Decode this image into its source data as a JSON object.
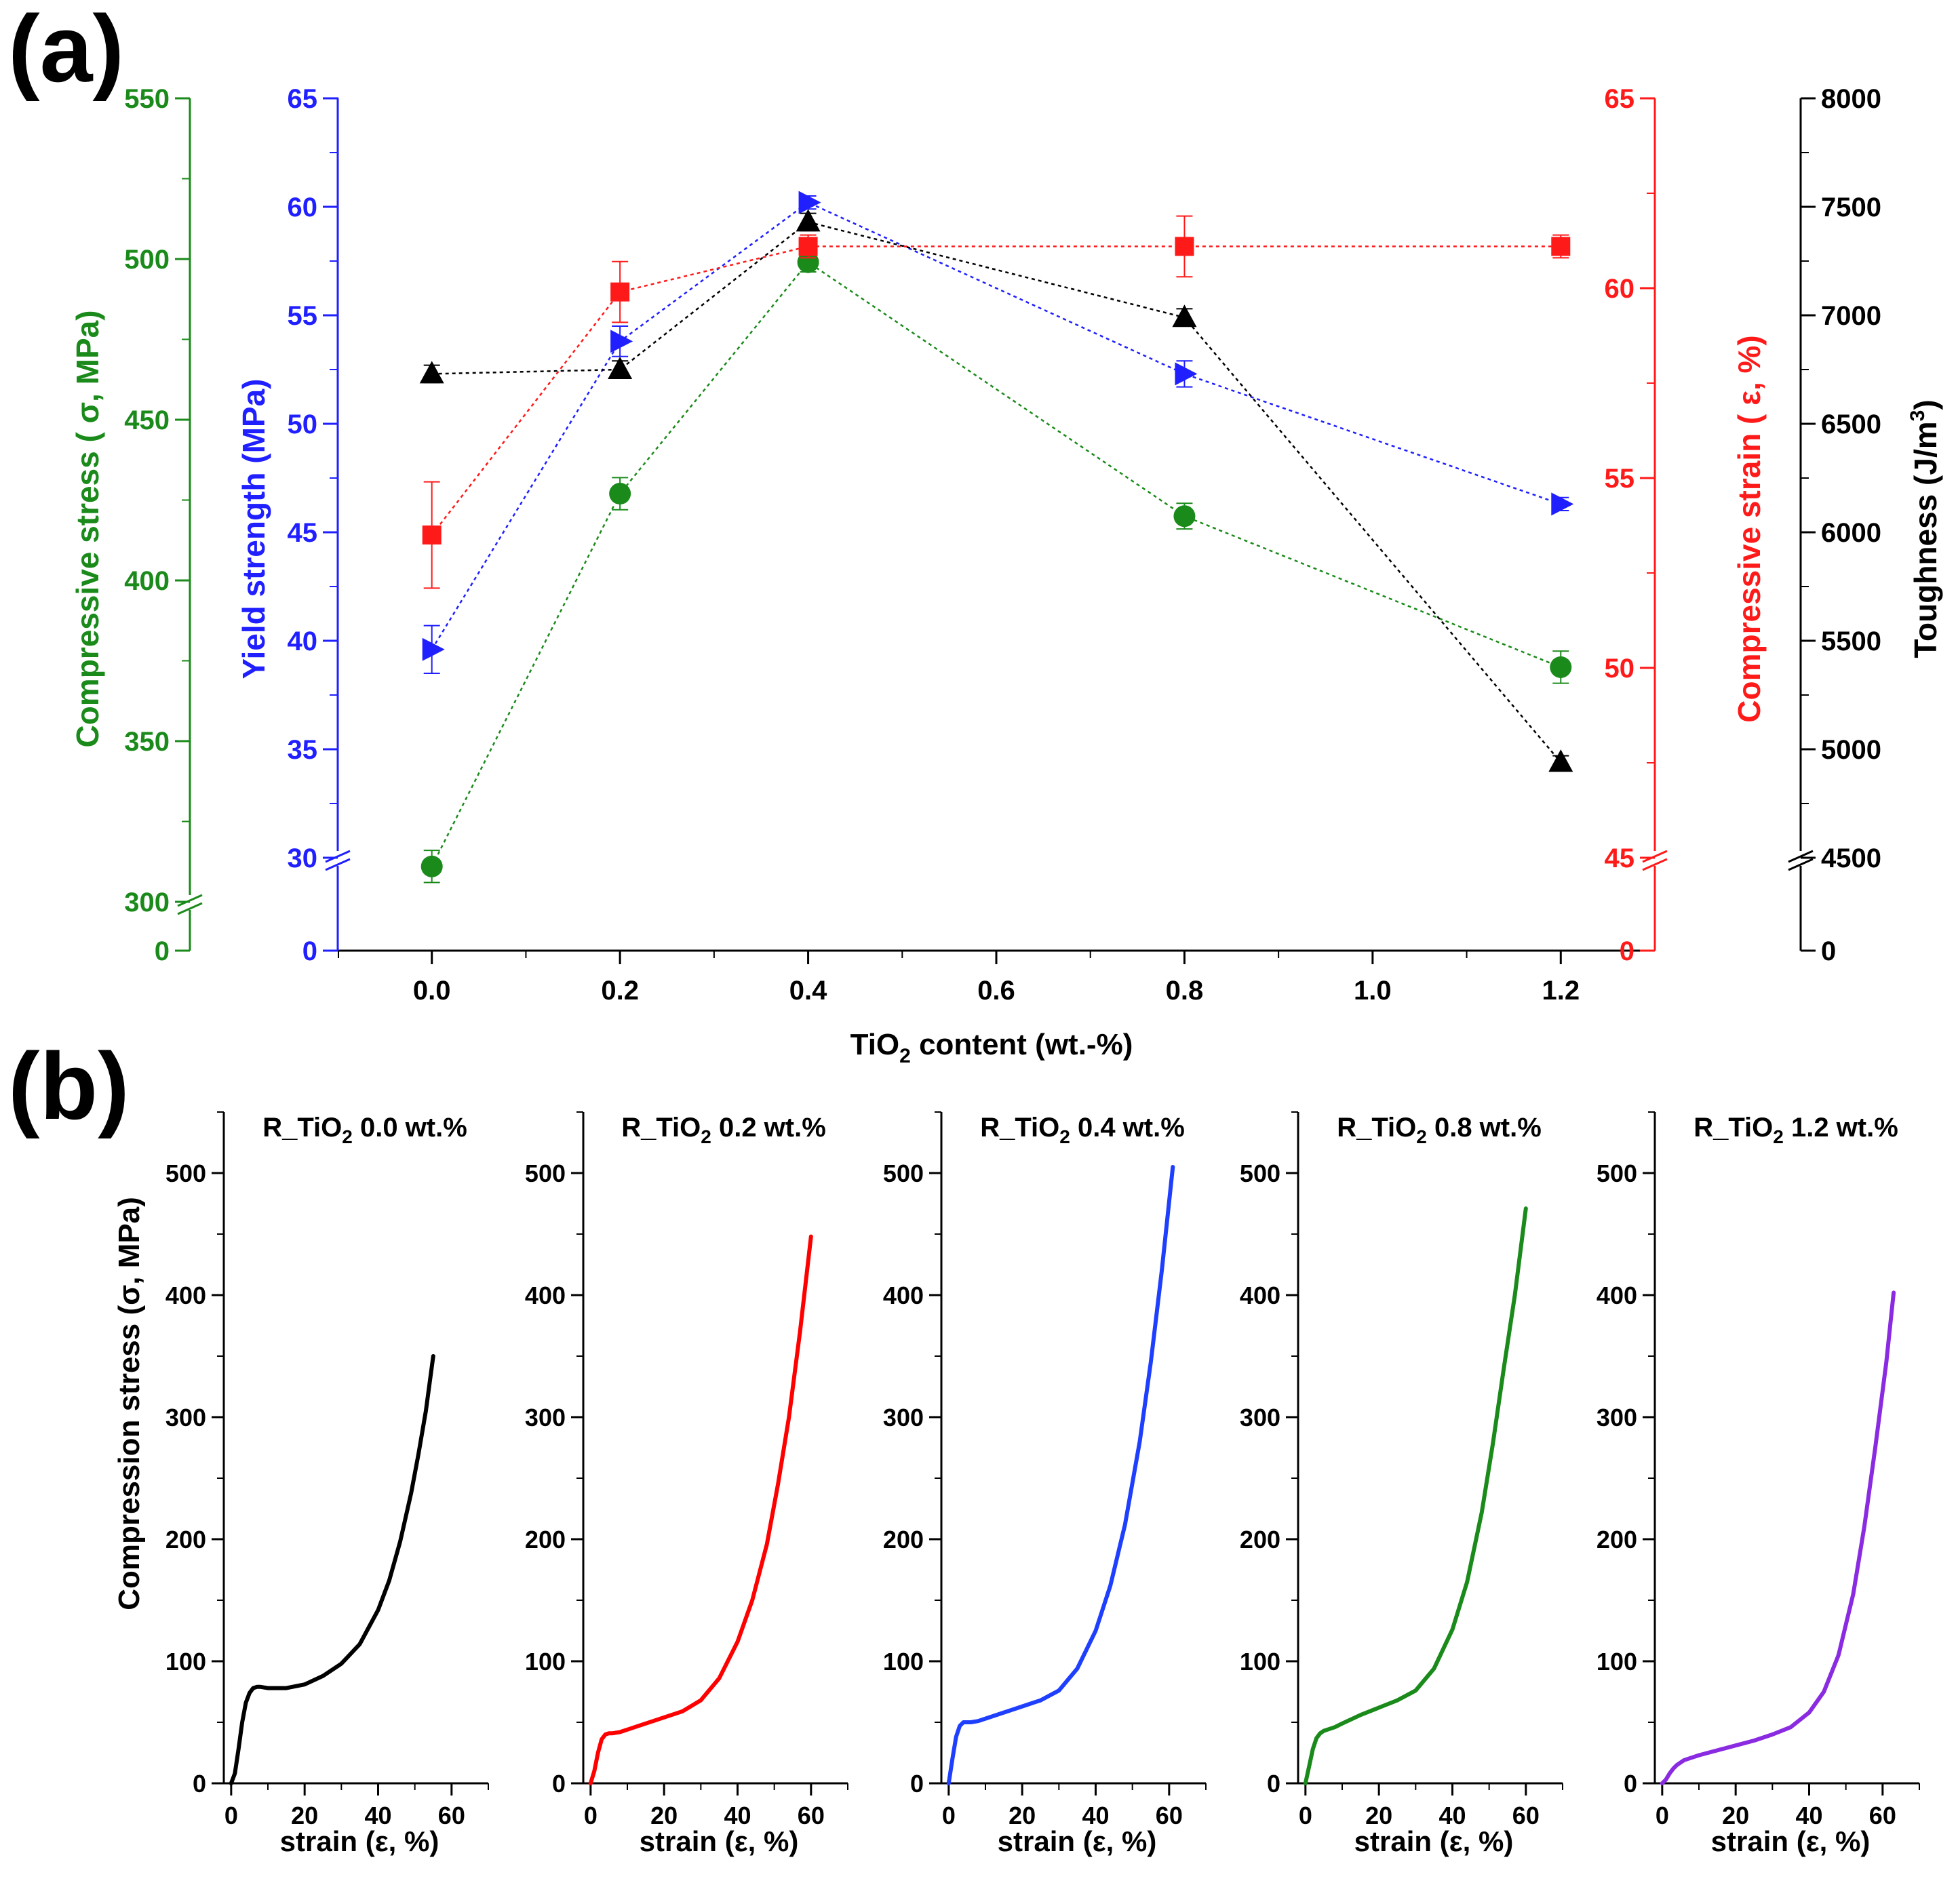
{
  "panel_a": {
    "panel_label": "(a)",
    "xlabel_main": "TiO",
    "xlabel_sub": "2",
    "xlabel_rest": " content (wt.-%)",
    "x_ticks": [
      "0.0",
      "0.2",
      "0.4",
      "0.6",
      "0.8",
      "1.0",
      "1.2"
    ],
    "axis_green": {
      "label": "Compressive stress ( σ, MPa)",
      "color": "#1a8a1a",
      "ticks": [
        "550",
        "500",
        "450",
        "400",
        "350",
        "300",
        "0"
      ]
    },
    "axis_blue": {
      "label": "Yield strength (MPa)",
      "color": "#1f1fff",
      "ticks": [
        "65",
        "60",
        "55",
        "50",
        "45",
        "40",
        "35",
        "30",
        "0"
      ]
    },
    "axis_red": {
      "label": "Compressive strain ( ε, %)",
      "color": "#ff1a1a",
      "ticks": [
        "65",
        "60",
        "55",
        "50",
        "45",
        "0"
      ]
    },
    "axis_black": {
      "label": "Toughness (J/m",
      "label_sup": "3",
      "label_end": ")",
      "color": "#000000",
      "ticks": [
        "8000",
        "7500",
        "7000",
        "6500",
        "6000",
        "5500",
        "5000",
        "4500",
        "0"
      ]
    }
  },
  "panel_b": {
    "panel_label": "(b)",
    "ylabel": "Compression stress (σ, MPa)",
    "xlabel": "strain (ε, %)",
    "y_ticks": [
      "0",
      "100",
      "200",
      "300",
      "400",
      "500"
    ],
    "x_ticks": [
      "0",
      "20",
      "40",
      "60"
    ],
    "titles": [
      {
        "pre": "R_TiO",
        "sub": "2",
        "post": " 0.0 wt.%"
      },
      {
        "pre": "R_TiO",
        "sub": "2",
        "post": " 0.2 wt.%"
      },
      {
        "pre": "R_TiO",
        "sub": "2",
        "post": " 0.4 wt.%"
      },
      {
        "pre": "R_TiO",
        "sub": "2",
        "post": " 0.8 wt.%"
      },
      {
        "pre": "R_TiO",
        "sub": "2",
        "post": " 1.2 wt.%"
      }
    ]
  },
  "chart_data": [
    {
      "type": "scatter",
      "title": "",
      "xlabel": "TiO2 content (wt.-%)",
      "x": [
        0.0,
        0.2,
        0.4,
        0.8,
        1.2
      ],
      "xlim": [
        -0.1,
        1.3
      ],
      "series": [
        {
          "name": "Compressive stress (σ, MPa)",
          "axis": "green",
          "marker": "circle",
          "color": "#1a8a1a",
          "values": [
            311,
            427,
            499,
            420,
            373
          ],
          "errors": [
            5,
            5,
            3,
            4,
            5
          ],
          "ylim": [
            300,
            550
          ]
        },
        {
          "name": "Yield strength (MPa)",
          "axis": "blue",
          "marker": "triangle-right",
          "color": "#1f1fff",
          "values": [
            39.6,
            53.8,
            60.2,
            52.3,
            46.3
          ],
          "errors": [
            1.1,
            0.7,
            0.3,
            0.6,
            0.3
          ],
          "ylim": [
            30,
            65
          ]
        },
        {
          "name": "Compressive strain (ε, %)",
          "axis": "red",
          "marker": "square",
          "color": "#ff1a1a",
          "values": [
            53.5,
            59.9,
            61.1,
            61.1,
            61.1
          ],
          "errors": [
            1.4,
            0.8,
            0.3,
            0.8,
            0.3
          ],
          "ylim": [
            45,
            65
          ]
        },
        {
          "name": "Toughness (J/m3)",
          "axis": "black",
          "marker": "triangle-up",
          "color": "#000000",
          "values": [
            6730,
            6750,
            7430,
            6990,
            4940
          ],
          "errors": [
            40,
            40,
            40,
            40,
            30
          ],
          "ylim": [
            4500,
            8000
          ]
        }
      ]
    },
    {
      "type": "line",
      "title": "R_TiO2 0.0 wt.%",
      "xlabel": "strain (ε, %)",
      "ylabel": "Compression stress (σ, MPa)",
      "xlim": [
        -2,
        70
      ],
      "ylim": [
        0,
        550
      ],
      "color": "#000000",
      "x": [
        0,
        1,
        2,
        3,
        4,
        5,
        6,
        7,
        8,
        10,
        15,
        20,
        25,
        30,
        35,
        40,
        43,
        46,
        49,
        51,
        53,
        55
      ],
      "y": [
        0,
        8,
        28,
        50,
        66,
        74,
        78,
        79,
        79,
        78,
        78,
        81,
        88,
        98,
        114,
        142,
        166,
        198,
        238,
        270,
        305,
        350
      ]
    },
    {
      "type": "line",
      "title": "R_TiO2 0.2 wt.%",
      "xlabel": "strain (ε, %)",
      "ylabel": "",
      "xlim": [
        -2,
        70
      ],
      "ylim": [
        0,
        550
      ],
      "color": "#ff0000",
      "x": [
        0,
        1,
        2,
        3,
        4,
        5,
        6,
        8,
        10,
        15,
        20,
        25,
        30,
        35,
        40,
        44,
        48,
        51,
        54,
        57,
        60
      ],
      "y": [
        0,
        10,
        25,
        36,
        40,
        41,
        41,
        42,
        44,
        49,
        54,
        59,
        68,
        86,
        116,
        150,
        196,
        245,
        300,
        370,
        448
      ]
    },
    {
      "type": "line",
      "title": "R_TiO2 0.4 wt.%",
      "xlabel": "strain (ε, %)",
      "ylabel": "",
      "xlim": [
        -2,
        70
      ],
      "ylim": [
        0,
        550
      ],
      "color": "#1f3fff",
      "x": [
        0,
        1,
        2,
        3,
        4,
        5,
        6,
        8,
        10,
        15,
        20,
        25,
        30,
        35,
        40,
        44,
        48,
        52,
        55,
        58,
        61
      ],
      "y": [
        0,
        20,
        38,
        47,
        50,
        50,
        50,
        51,
        53,
        58,
        63,
        68,
        76,
        94,
        125,
        162,
        212,
        280,
        345,
        420,
        505
      ]
    },
    {
      "type": "line",
      "title": "R_TiO2 0.8 wt.%",
      "xlabel": "strain (ε, %)",
      "ylabel": "",
      "xlim": [
        -2,
        70
      ],
      "ylim": [
        0,
        550
      ],
      "color": "#1a8a1a",
      "x": [
        0,
        1,
        2,
        3,
        4,
        5,
        6,
        8,
        10,
        15,
        20,
        25,
        30,
        35,
        40,
        44,
        48,
        51,
        54,
        57,
        60
      ],
      "y": [
        0,
        14,
        28,
        37,
        41,
        43,
        44,
        46,
        49,
        56,
        62,
        68,
        76,
        94,
        126,
        165,
        222,
        278,
        340,
        400,
        471
      ]
    },
    {
      "type": "line",
      "title": "R_TiO2 1.2 wt.%",
      "xlabel": "strain (ε, %)",
      "ylabel": "",
      "xlim": [
        -2,
        70
      ],
      "ylim": [
        0,
        550
      ],
      "color": "#8a2be2",
      "x": [
        0,
        1,
        2,
        3,
        4,
        5,
        6,
        8,
        10,
        15,
        20,
        25,
        30,
        35,
        40,
        44,
        48,
        52,
        55,
        58,
        61,
        63
      ],
      "y": [
        0,
        3,
        8,
        12,
        15,
        17,
        19,
        21,
        23,
        27,
        31,
        35,
        40,
        46,
        58,
        75,
        105,
        155,
        210,
        275,
        345,
        402
      ]
    }
  ]
}
